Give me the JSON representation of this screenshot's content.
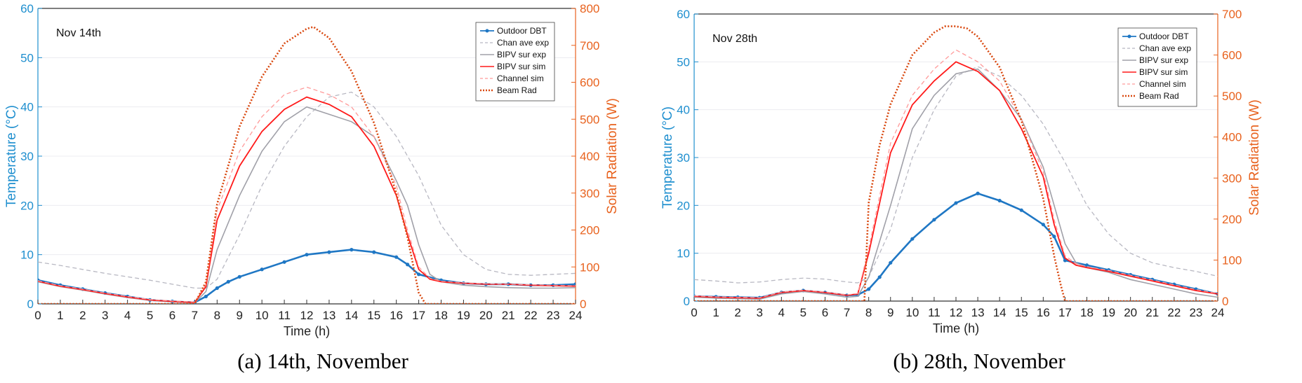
{
  "chart_data": [
    {
      "type": "line",
      "annotation": "Nov 14th",
      "caption": "(a) 14th, November",
      "xlabel": "Time (h)",
      "ylabel": "Temperature (°C)",
      "ylabel_right": "Solar Radiation (W)",
      "xlim": [
        0,
        24
      ],
      "ylim": [
        0,
        60
      ],
      "ylim_right": [
        0,
        800
      ],
      "xticks": [
        0,
        1,
        2,
        3,
        4,
        5,
        6,
        7,
        8,
        9,
        10,
        11,
        12,
        13,
        14,
        15,
        16,
        17,
        18,
        19,
        20,
        21,
        22,
        23,
        24
      ],
      "yticks": [
        0,
        10,
        20,
        30,
        40,
        50,
        60
      ],
      "yticks_right": [
        0,
        100,
        200,
        300,
        400,
        500,
        600,
        700,
        800
      ],
      "grid": true,
      "legend_position": "top-right",
      "series": [
        {
          "name": "Outdoor DBT",
          "axis": "left",
          "color": "#1f77c4",
          "style": "marker-line",
          "x": [
            0,
            1,
            2,
            3,
            4,
            5,
            6,
            7,
            7.5,
            8,
            8.5,
            9,
            10,
            11,
            12,
            13,
            14,
            15,
            16,
            16.5,
            17,
            18,
            19,
            20,
            21,
            22,
            23,
            24
          ],
          "y": [
            4.8,
            3.8,
            3.0,
            2.2,
            1.5,
            0.8,
            0.5,
            0.3,
            1.5,
            3.2,
            4.5,
            5.5,
            7.0,
            8.5,
            10.0,
            10.5,
            11.0,
            10.5,
            9.5,
            8.0,
            6.0,
            4.8,
            4.2,
            4.0,
            4.0,
            3.8,
            3.8,
            4.0
          ]
        },
        {
          "name": "Chan ave exp",
          "axis": "left",
          "color": "#b8b8c2",
          "style": "dashed",
          "x": [
            0,
            1,
            2,
            3,
            4,
            5,
            6,
            7,
            7.5,
            8,
            9,
            10,
            11,
            12,
            13,
            14,
            15,
            16,
            17,
            18,
            19,
            20,
            21,
            22,
            23,
            24
          ],
          "y": [
            8.5,
            7.8,
            7.0,
            6.2,
            5.5,
            4.8,
            4.0,
            3.2,
            3.2,
            5.0,
            14.0,
            24.0,
            32.0,
            38.0,
            42.0,
            43.0,
            40.0,
            34.0,
            26.0,
            16.0,
            10.0,
            7.0,
            6.0,
            5.8,
            6.0,
            6.2
          ]
        },
        {
          "name": "BIPV sur exp",
          "axis": "left",
          "color": "#a0a0a8",
          "style": "solid",
          "x": [
            0,
            1,
            2,
            3,
            4,
            5,
            6,
            7,
            7.5,
            8,
            9,
            10,
            11,
            12,
            13,
            14,
            15,
            16,
            16.5,
            17,
            17.5,
            18,
            19,
            20,
            21,
            22,
            23,
            24
          ],
          "y": [
            4.5,
            3.5,
            2.8,
            2.0,
            1.3,
            0.7,
            0.4,
            0.2,
            2.5,
            11.0,
            22.0,
            31.0,
            37.0,
            40.0,
            38.5,
            37.0,
            34.0,
            25.0,
            20.0,
            12.0,
            6.0,
            4.5,
            3.8,
            3.5,
            3.3,
            3.2,
            3.2,
            3.3
          ]
        },
        {
          "name": "BIPV sur sim",
          "axis": "left",
          "color": "#ff1a1a",
          "style": "solid",
          "x": [
            0,
            1,
            2,
            3,
            4,
            5,
            6,
            7,
            7.5,
            8,
            9,
            10,
            11,
            12,
            13,
            14,
            15,
            16,
            16.5,
            17,
            17.5,
            18,
            19,
            20,
            21,
            22,
            23,
            24
          ],
          "y": [
            4.6,
            3.6,
            2.9,
            2.1,
            1.4,
            0.8,
            0.5,
            0.3,
            3.5,
            17.0,
            28.0,
            35.0,
            39.5,
            42.0,
            40.5,
            38.0,
            32.0,
            22.0,
            14.0,
            7.0,
            5.0,
            4.5,
            4.2,
            4.0,
            4.0,
            3.8,
            3.7,
            3.6
          ]
        },
        {
          "name": "Channel sim",
          "axis": "left",
          "color": "#ff9a9a",
          "style": "dashed",
          "x": [
            0,
            1,
            2,
            3,
            4,
            5,
            6,
            7,
            7.5,
            8,
            9,
            10,
            11,
            12,
            13,
            14,
            15,
            16,
            16.5,
            17,
            17.5,
            18,
            19,
            20,
            21,
            22,
            23,
            24
          ],
          "y": [
            4.7,
            3.7,
            3.0,
            2.2,
            1.5,
            0.9,
            0.6,
            0.4,
            4.0,
            19.0,
            31.0,
            38.0,
            42.5,
            44.0,
            42.5,
            40.0,
            34.0,
            24.0,
            15.0,
            7.5,
            5.2,
            4.6,
            4.3,
            4.1,
            4.0,
            3.9,
            3.8,
            3.7
          ]
        },
        {
          "name": "Beam Rad",
          "axis": "right",
          "color": "#d9480f",
          "style": "dotted",
          "x": [
            0,
            7,
            7.5,
            8,
            9,
            10,
            11,
            12,
            12.3,
            13,
            14,
            15,
            16,
            16.5,
            17,
            17.3,
            24
          ],
          "y": [
            0,
            0,
            60,
            270,
            480,
            615,
            705,
            745,
            750,
            720,
            630,
            490,
            300,
            180,
            30,
            0,
            0
          ]
        }
      ]
    },
    {
      "type": "line",
      "annotation": "Nov 28th",
      "caption": "(b) 28th, November",
      "xlabel": "Time (h)",
      "ylabel": "Temperature (°C)",
      "ylabel_right": "Solar Radiation (W)",
      "xlim": [
        0,
        24
      ],
      "ylim": [
        0,
        60
      ],
      "ylim_right": [
        0,
        700
      ],
      "xticks": [
        0,
        1,
        2,
        3,
        4,
        5,
        6,
        7,
        8,
        9,
        10,
        11,
        12,
        13,
        14,
        15,
        16,
        17,
        18,
        19,
        20,
        21,
        22,
        23,
        24
      ],
      "yticks": [
        0,
        10,
        20,
        30,
        40,
        50,
        60
      ],
      "yticks_right": [
        0,
        100,
        200,
        300,
        400,
        500,
        600,
        700
      ],
      "grid": true,
      "legend_position": "top-right",
      "series": [
        {
          "name": "Outdoor DBT",
          "axis": "left",
          "color": "#1f77c4",
          "style": "marker-line",
          "x": [
            0,
            1,
            2,
            3,
            4,
            5,
            6,
            7,
            7.5,
            8,
            8.5,
            9,
            10,
            11,
            12,
            13,
            14,
            15,
            16,
            16.5,
            17,
            18,
            19,
            20,
            21,
            22,
            23,
            24
          ],
          "y": [
            1.0,
            0.9,
            0.8,
            0.7,
            1.8,
            2.2,
            1.8,
            1.2,
            1.3,
            2.5,
            5.0,
            8.0,
            13.0,
            17.0,
            20.5,
            22.5,
            21.0,
            19.0,
            16.0,
            13.5,
            8.5,
            7.5,
            6.5,
            5.5,
            4.5,
            3.5,
            2.5,
            1.5
          ]
        },
        {
          "name": "Chan ave exp",
          "axis": "left",
          "color": "#b8b8c2",
          "style": "dashed",
          "x": [
            0,
            1,
            2,
            3,
            4,
            5,
            6,
            7,
            7.5,
            8,
            9,
            10,
            11,
            12,
            13,
            14,
            15,
            16,
            17,
            18,
            19,
            20,
            21,
            22,
            23,
            24
          ],
          "y": [
            4.5,
            4.2,
            3.8,
            4.0,
            4.5,
            4.8,
            4.6,
            4.0,
            3.8,
            5.0,
            15.0,
            30.0,
            40.0,
            47.0,
            49.0,
            47.0,
            43.0,
            37.0,
            29.0,
            20.0,
            14.0,
            10.0,
            8.0,
            7.0,
            6.2,
            5.2
          ]
        },
        {
          "name": "BIPV sur exp",
          "axis": "left",
          "color": "#a0a0a8",
          "style": "solid",
          "x": [
            0,
            1,
            2,
            3,
            4,
            5,
            6,
            7,
            7.5,
            8,
            9,
            10,
            11,
            12,
            13,
            14,
            15,
            16,
            16.5,
            17,
            17.5,
            18,
            19,
            20,
            21,
            22,
            23,
            24
          ],
          "y": [
            0.8,
            0.6,
            0.5,
            0.4,
            1.5,
            2.0,
            1.5,
            0.8,
            1.0,
            5.0,
            20.0,
            36.0,
            43.0,
            47.5,
            48.5,
            44.0,
            38.0,
            28.0,
            20.0,
            12.0,
            8.0,
            7.0,
            6.0,
            4.5,
            3.5,
            2.5,
            1.5,
            0.8
          ]
        },
        {
          "name": "BIPV sur sim",
          "axis": "left",
          "color": "#ff1a1a",
          "style": "solid",
          "x": [
            0,
            1,
            2,
            3,
            4,
            5,
            6,
            7,
            7.5,
            8,
            9,
            10,
            11,
            12,
            13,
            14,
            15,
            16,
            16.5,
            17,
            17.5,
            18,
            19,
            20,
            21,
            22,
            23,
            24
          ],
          "y": [
            1.0,
            0.8,
            0.7,
            0.6,
            1.8,
            2.2,
            1.8,
            1.2,
            1.5,
            10.0,
            31.0,
            41.0,
            46.0,
            50.0,
            48.0,
            44.0,
            36.0,
            26.0,
            16.0,
            9.0,
            7.5,
            7.0,
            6.2,
            5.2,
            4.2,
            3.2,
            2.2,
            1.5
          ]
        },
        {
          "name": "Channel sim",
          "axis": "left",
          "color": "#ff9a9a",
          "style": "dashed",
          "x": [
            0,
            1,
            2,
            3,
            4,
            5,
            6,
            7,
            7.5,
            8,
            9,
            10,
            11,
            12,
            13,
            14,
            15,
            16,
            16.5,
            17,
            17.5,
            18,
            19,
            20,
            21,
            22,
            23,
            24
          ],
          "y": [
            1.1,
            0.9,
            0.8,
            0.7,
            1.9,
            2.3,
            1.9,
            1.3,
            1.6,
            11.0,
            33.0,
            43.0,
            48.5,
            52.5,
            50.0,
            46.0,
            38.0,
            27.0,
            17.0,
            9.5,
            7.8,
            7.2,
            6.4,
            5.4,
            4.4,
            3.4,
            2.4,
            1.6
          ]
        },
        {
          "name": "Beam Rad",
          "axis": "right",
          "color": "#d9480f",
          "style": "dotted",
          "x": [
            0,
            7.8,
            8,
            8.5,
            9,
            10,
            11,
            11.5,
            12,
            12.5,
            13,
            14,
            15,
            16,
            16.5,
            16.8,
            17,
            24
          ],
          "y": [
            0,
            0,
            240,
            380,
            480,
            600,
            655,
            670,
            670,
            665,
            645,
            570,
            440,
            250,
            110,
            40,
            0,
            0
          ]
        }
      ]
    }
  ]
}
